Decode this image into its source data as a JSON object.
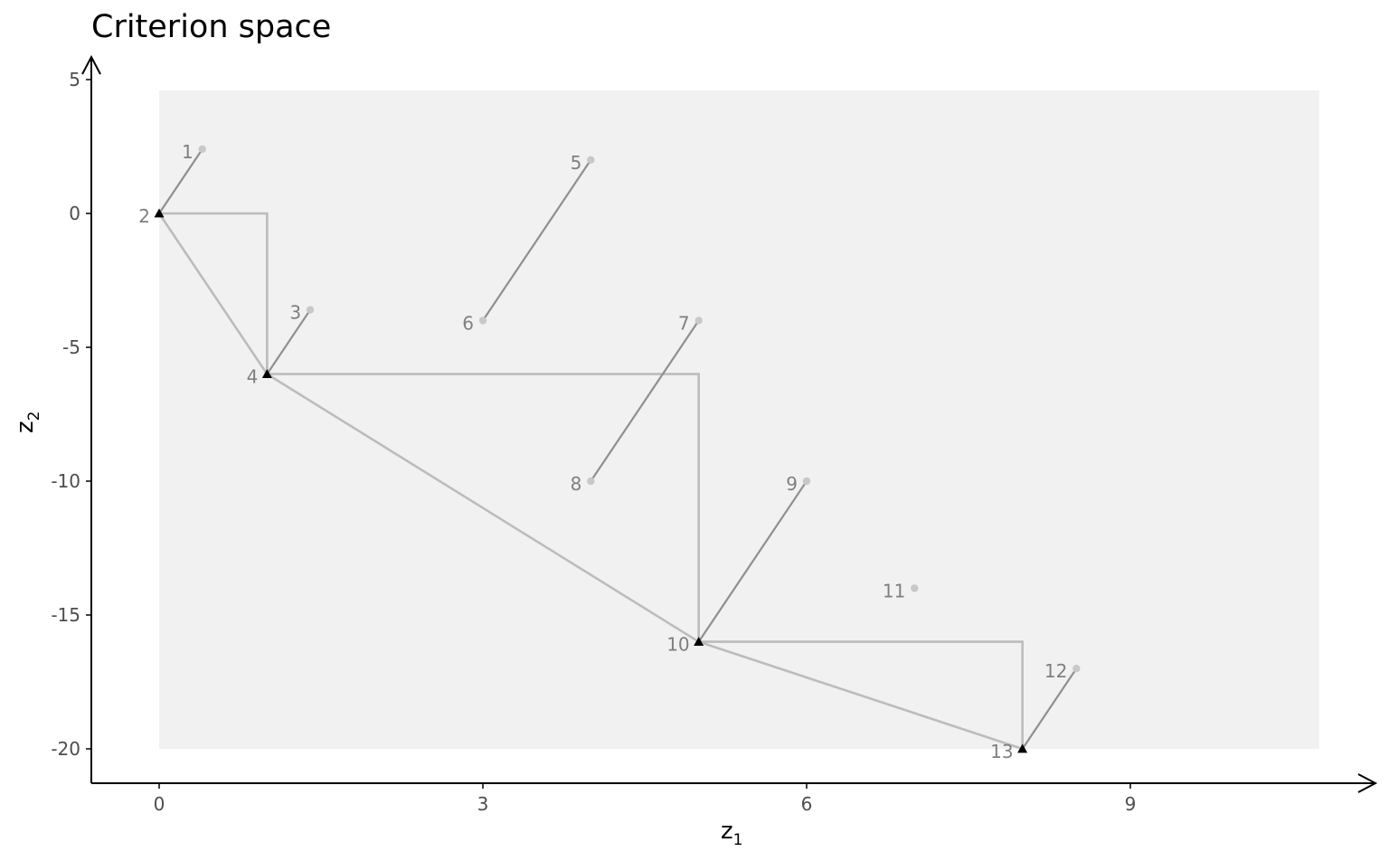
{
  "chart_data": {
    "type": "scatter",
    "title": "Criterion space",
    "xlabel": {
      "main": "z",
      "sub": "1"
    },
    "ylabel": {
      "main": "z",
      "sub": "2"
    },
    "xlim": [
      -0.6,
      11.2
    ],
    "ylim": [
      -21.3,
      5.0
    ],
    "x_ticks": [
      0,
      3,
      6,
      9
    ],
    "y_ticks": [
      5,
      0,
      -5,
      -10,
      -15,
      -20
    ],
    "grid": false,
    "background_region": {
      "x": [
        0,
        10.75
      ],
      "y": [
        -20,
        4.6
      ],
      "color": "#f1f1f1"
    },
    "points": [
      {
        "id": "1",
        "x": 0.4,
        "y": 2.4,
        "nondominated": false
      },
      {
        "id": "2",
        "x": 0.0,
        "y": 0.0,
        "nondominated": true
      },
      {
        "id": "3",
        "x": 1.4,
        "y": -3.6,
        "nondominated": false
      },
      {
        "id": "4",
        "x": 1.0,
        "y": -6.0,
        "nondominated": true
      },
      {
        "id": "5",
        "x": 4.0,
        "y": 2.0,
        "nondominated": false
      },
      {
        "id": "6",
        "x": 3.0,
        "y": -4.0,
        "nondominated": false
      },
      {
        "id": "7",
        "x": 5.0,
        "y": -4.0,
        "nondominated": false
      },
      {
        "id": "8",
        "x": 4.0,
        "y": -10.0,
        "nondominated": false
      },
      {
        "id": "9",
        "x": 6.0,
        "y": -10.0,
        "nondominated": false
      },
      {
        "id": "10",
        "x": 5.0,
        "y": -16.0,
        "nondominated": true
      },
      {
        "id": "11",
        "x": 7.0,
        "y": -14.0,
        "nondominated": false
      },
      {
        "id": "12",
        "x": 8.5,
        "y": -17.0,
        "nondominated": false
      },
      {
        "id": "13",
        "x": 8.0,
        "y": -20.0,
        "nondominated": true
      }
    ],
    "connections": [
      [
        "1",
        "2"
      ],
      [
        "3",
        "4"
      ],
      [
        "5",
        "6"
      ],
      [
        "7",
        "8"
      ],
      [
        "9",
        "10"
      ],
      [
        "12",
        "13"
      ]
    ],
    "hull": [
      "2",
      "4",
      "10",
      "13"
    ],
    "staircase": [
      [
        0,
        0
      ],
      [
        1,
        0
      ],
      [
        1,
        -6
      ],
      [
        5,
        -6
      ],
      [
        5,
        -16
      ],
      [
        8,
        -16
      ],
      [
        8,
        -20
      ]
    ],
    "colors": {
      "region": "#f1f1f1",
      "segment": "#8f8f8f",
      "frontier": "#bcbcbc",
      "point": "#c8c8c8",
      "triangle": "#000000",
      "point_label": "#7f7f7f",
      "axis": "#000000",
      "tick_label": "#4d4d4d"
    }
  }
}
